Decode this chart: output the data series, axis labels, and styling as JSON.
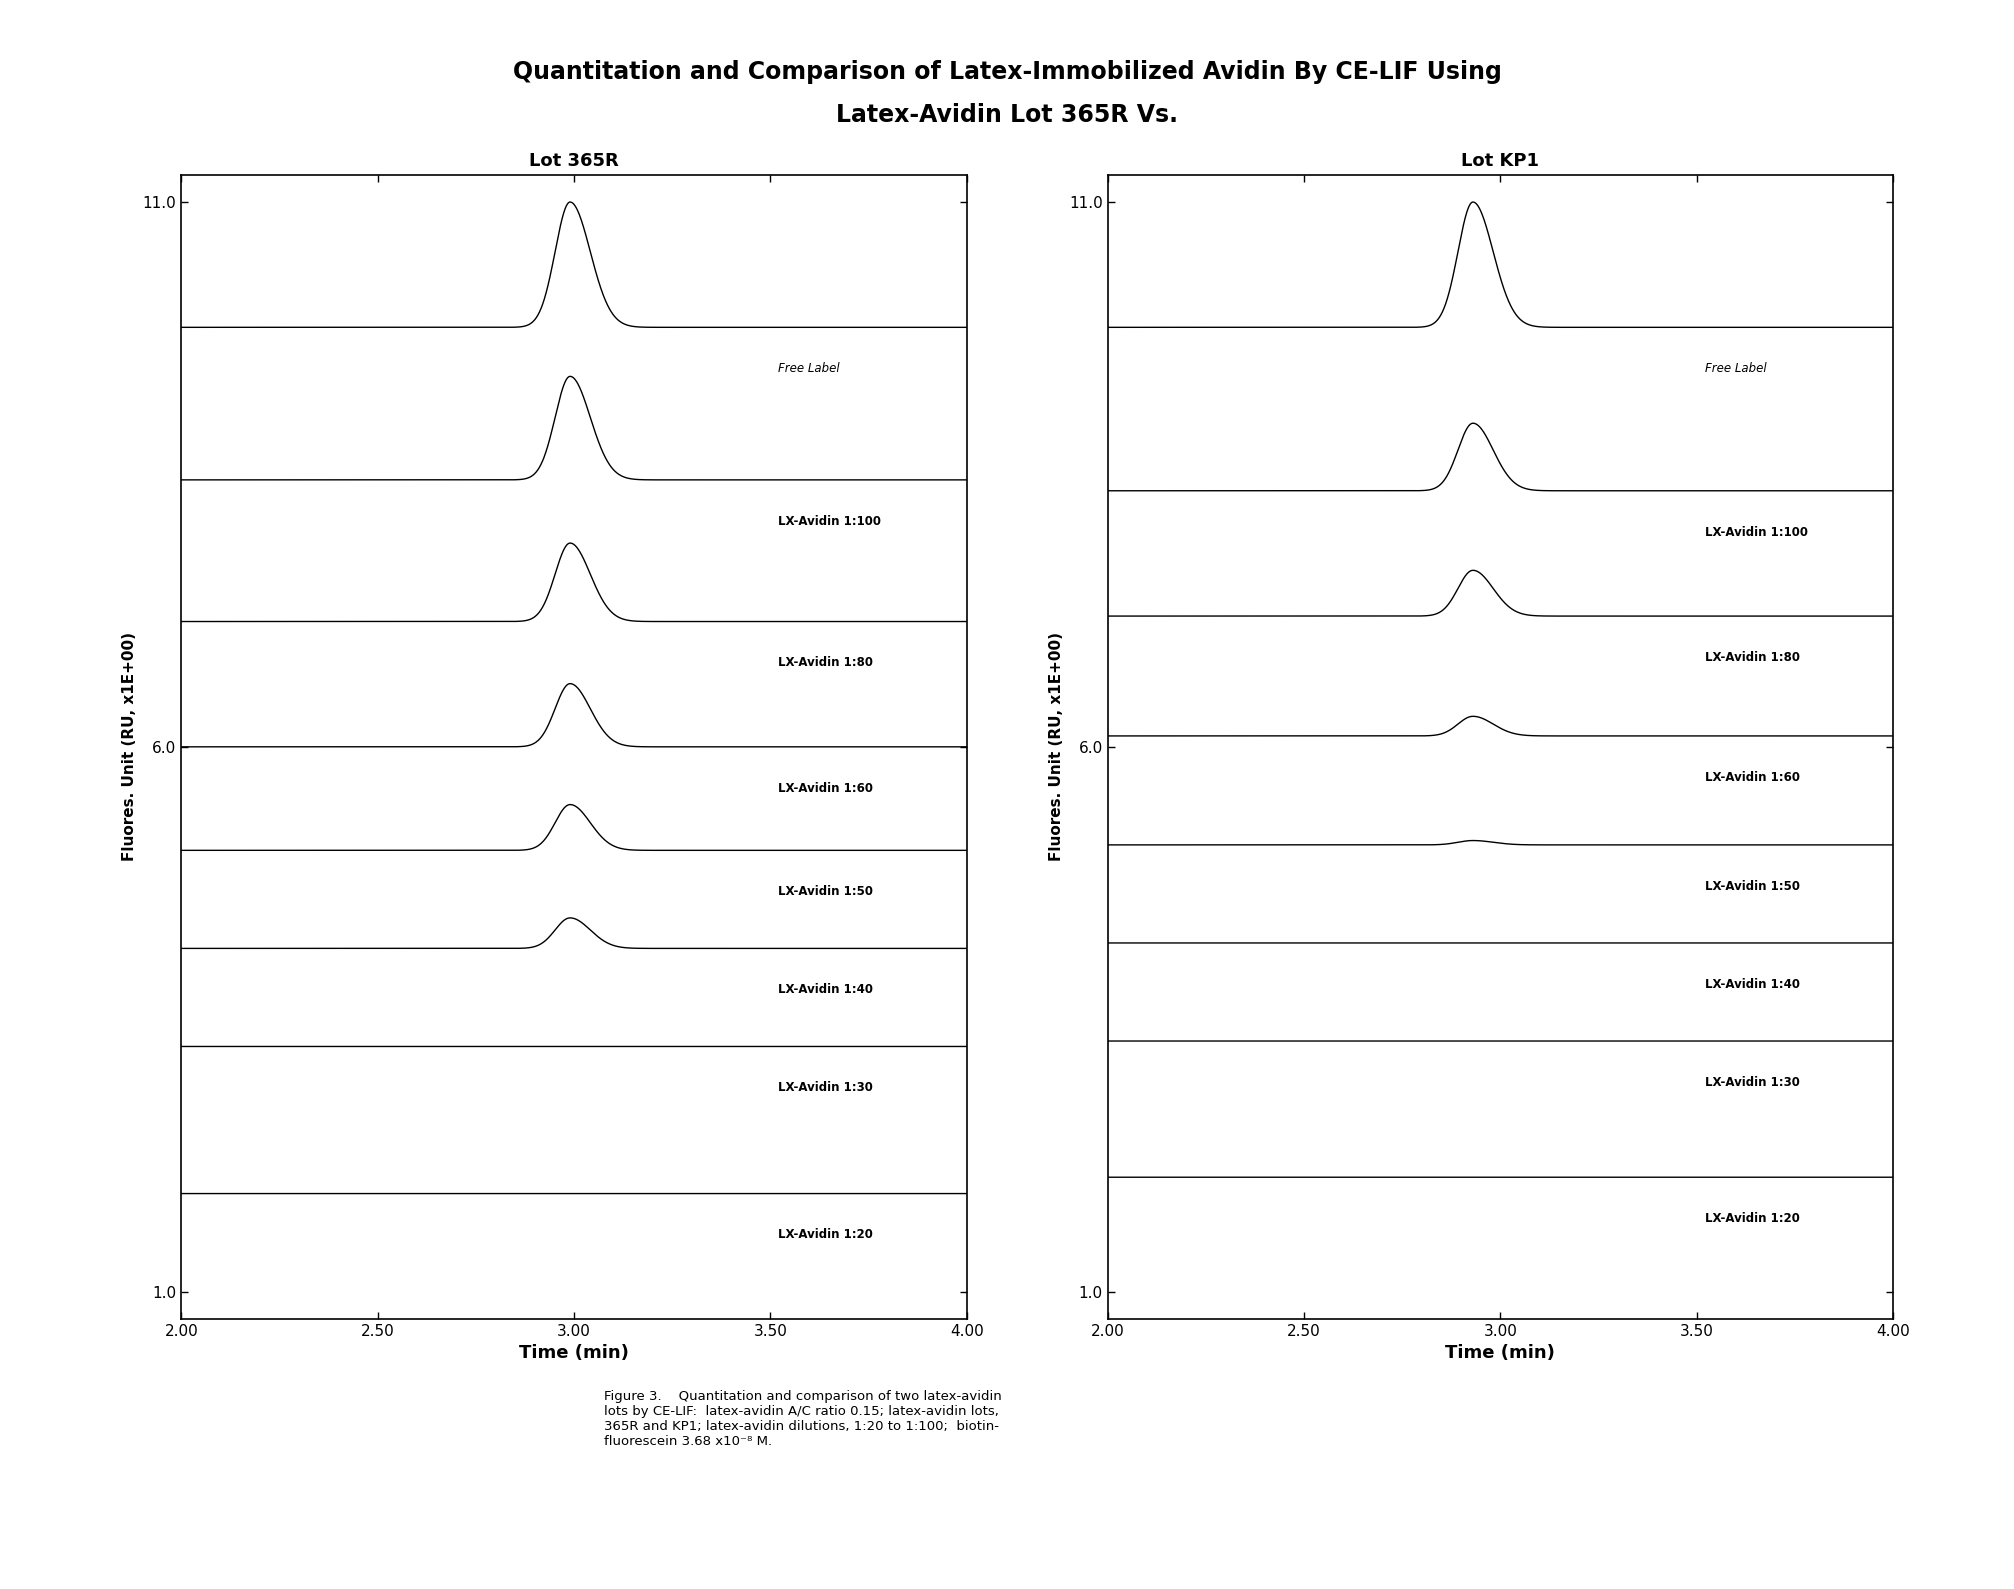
{
  "title_line1": "Quantitation and Comparison of Latex-Immobilized Avidin By CE-LIF Using",
  "title_line2": "Latex-Avidin Lot 365R Vs.",
  "title_fontsize": 17,
  "title_fontweight": "bold",
  "panel_left_title": "Lot 365R",
  "panel_right_title": "Lot KP1",
  "xlabel": "Time (min)",
  "ylabel": "Fluores. Unit (RU, x1E+00)",
  "xlim": [
    2.0,
    4.0
  ],
  "ylim": [
    0.75,
    11.25
  ],
  "xticks": [
    2.0,
    2.5,
    3.0,
    3.5,
    4.0
  ],
  "xtick_labels": [
    "2.00",
    "2.50",
    "3.00",
    "3.50",
    "4.00"
  ],
  "yticks": [
    1.0,
    6.0,
    11.0
  ],
  "ytick_labels": [
    "1.0",
    "6.0",
    "11.0"
  ],
  "trace_labels": [
    "Free Label",
    "LX-Avidin 1:100",
    "LX-Avidin 1:80",
    "LX-Avidin 1:60",
    "LX-Avidin 1:50",
    "LX-Avidin 1:40",
    "LX-Avidin 1:30",
    "LX-Avidin 1:20"
  ],
  "left_baselines": [
    9.85,
    8.45,
    7.15,
    6.0,
    5.05,
    4.15,
    3.25,
    1.9
  ],
  "left_peak_heights": [
    1.15,
    0.95,
    0.72,
    0.58,
    0.42,
    0.28,
    0.0,
    0.0
  ],
  "left_peak_widths": [
    0.038,
    0.038,
    0.038,
    0.038,
    0.038,
    0.038,
    0.038,
    0.038
  ],
  "left_peak_pos": [
    2.99,
    2.99,
    2.99,
    2.99,
    2.99,
    2.99,
    2.99,
    2.99
  ],
  "right_baselines": [
    9.85,
    8.35,
    7.2,
    6.1,
    5.1,
    4.2,
    3.3,
    2.05
  ],
  "right_peak_heights": [
    1.15,
    0.62,
    0.42,
    0.18,
    0.04,
    0.0,
    0.0,
    0.0
  ],
  "right_peak_widths": [
    0.038,
    0.038,
    0.038,
    0.038,
    0.038,
    0.038,
    0.038,
    0.038
  ],
  "right_peak_pos": [
    2.93,
    2.93,
    2.93,
    2.93,
    2.93,
    2.93,
    2.93,
    2.93
  ],
  "label_italic": [
    true,
    false,
    false,
    false,
    false,
    false,
    false,
    false
  ],
  "label_bold": [
    false,
    true,
    true,
    true,
    true,
    true,
    true,
    true
  ],
  "caption": "Figure 3.    Quantitation and comparison of two latex-avidin\nlots by CE-LIF:  latex-avidin A/C ratio 0.15; latex-avidin lots,\n365R and KP1; latex-avidin dilutions, 1:20 to 1:100;  biotin-\nfluorescein 3.68 x10⁻⁸ M.",
  "background_color": "#ffffff",
  "trace_color": "#000000"
}
